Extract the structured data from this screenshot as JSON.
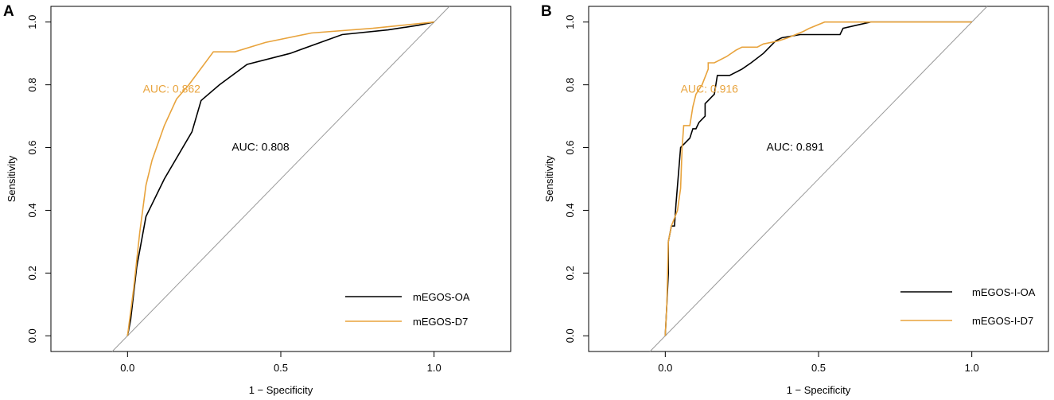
{
  "chart_data": [
    {
      "panel": "A",
      "type": "line",
      "title": "",
      "xlabel": "1 − Specificity",
      "ylabel": "Sensitivity",
      "xlim": [
        -0.25,
        1.25
      ],
      "ylim": [
        -0.05,
        1.05
      ],
      "x_ticks": [
        0.0,
        0.5,
        1.0
      ],
      "x_tick_labels": [
        "0.0",
        "0.5",
        "1.0"
      ],
      "y_ticks": [
        0.0,
        0.2,
        0.4,
        0.6,
        0.8,
        1.0
      ],
      "y_tick_labels": [
        "0.0",
        "0.2",
        "0.4",
        "0.6",
        "0.8",
        "1.0"
      ],
      "diagonal": true,
      "legend_position": "bottom-right",
      "series": [
        {
          "name": "mEGOS-OA",
          "color": "#000000",
          "auc_label": "AUC: 0.808",
          "auc_at": [
            0.34,
            0.59
          ],
          "points": [
            [
              0,
              0
            ],
            [
              0.01,
              0.05
            ],
            [
              0.03,
              0.22
            ],
            [
              0.06,
              0.38
            ],
            [
              0.12,
              0.5
            ],
            [
              0.21,
              0.65
            ],
            [
              0.24,
              0.75
            ],
            [
              0.3,
              0.8
            ],
            [
              0.39,
              0.865
            ],
            [
              0.53,
              0.9
            ],
            [
              0.7,
              0.96
            ],
            [
              0.85,
              0.975
            ],
            [
              0.95,
              0.99
            ],
            [
              1.0,
              1.0
            ]
          ]
        },
        {
          "name": "mEGOS-D7",
          "color": "#e8a33c",
          "auc_label": "AUC: 0.862",
          "auc_at": [
            0.05,
            0.775
          ],
          "points": [
            [
              0,
              0
            ],
            [
              0.02,
              0.15
            ],
            [
              0.04,
              0.33
            ],
            [
              0.06,
              0.48
            ],
            [
              0.08,
              0.56
            ],
            [
              0.12,
              0.67
            ],
            [
              0.16,
              0.755
            ],
            [
              0.2,
              0.8
            ],
            [
              0.28,
              0.905
            ],
            [
              0.35,
              0.905
            ],
            [
              0.45,
              0.935
            ],
            [
              0.6,
              0.965
            ],
            [
              0.8,
              0.98
            ],
            [
              1.0,
              1.0
            ]
          ]
        }
      ]
    },
    {
      "panel": "B",
      "type": "line",
      "title": "",
      "xlabel": "1 − Specificity",
      "ylabel": "Sensitivity",
      "xlim": [
        -0.25,
        1.25
      ],
      "ylim": [
        -0.05,
        1.05
      ],
      "x_ticks": [
        0.0,
        0.5,
        1.0
      ],
      "x_tick_labels": [
        "0.0",
        "0.5",
        "1.0"
      ],
      "y_ticks": [
        0.0,
        0.2,
        0.4,
        0.6,
        0.8,
        1.0
      ],
      "y_tick_labels": [
        "0.0",
        "0.2",
        "0.4",
        "0.6",
        "0.8",
        "1.0"
      ],
      "diagonal": true,
      "legend_position": "bottom-right",
      "series": [
        {
          "name": "mEGOS-I-OA",
          "color": "#000000",
          "auc_label": "AUC: 0.891",
          "auc_at": [
            0.33,
            0.59
          ],
          "points": [
            [
              0,
              0
            ],
            [
              0.005,
              0.1
            ],
            [
              0.01,
              0.2
            ],
            [
              0.01,
              0.3
            ],
            [
              0.02,
              0.35
            ],
            [
              0.03,
              0.35
            ],
            [
              0.035,
              0.42
            ],
            [
              0.05,
              0.6
            ],
            [
              0.06,
              0.61
            ],
            [
              0.08,
              0.63
            ],
            [
              0.09,
              0.66
            ],
            [
              0.1,
              0.66
            ],
            [
              0.11,
              0.68
            ],
            [
              0.13,
              0.7
            ],
            [
              0.13,
              0.74
            ],
            [
              0.14,
              0.75
            ],
            [
              0.15,
              0.76
            ],
            [
              0.16,
              0.77
            ],
            [
              0.17,
              0.83
            ],
            [
              0.21,
              0.83
            ],
            [
              0.25,
              0.85
            ],
            [
              0.28,
              0.87
            ],
            [
              0.32,
              0.9
            ],
            [
              0.36,
              0.94
            ],
            [
              0.38,
              0.95
            ],
            [
              0.44,
              0.96
            ],
            [
              0.57,
              0.96
            ],
            [
              0.58,
              0.98
            ],
            [
              0.67,
              1.0
            ],
            [
              1.0,
              1.0
            ]
          ]
        },
        {
          "name": "mEGOS-I-D7",
          "color": "#e8a33c",
          "auc_label": "AUC: 0.916",
          "auc_at": [
            0.05,
            0.775
          ],
          "points": [
            [
              0,
              0
            ],
            [
              0.005,
              0.1
            ],
            [
              0.01,
              0.3
            ],
            [
              0.02,
              0.35
            ],
            [
              0.04,
              0.4
            ],
            [
              0.05,
              0.47
            ],
            [
              0.055,
              0.6
            ],
            [
              0.06,
              0.67
            ],
            [
              0.08,
              0.67
            ],
            [
              0.09,
              0.73
            ],
            [
              0.1,
              0.77
            ],
            [
              0.12,
              0.8
            ],
            [
              0.14,
              0.85
            ],
            [
              0.14,
              0.87
            ],
            [
              0.16,
              0.87
            ],
            [
              0.2,
              0.89
            ],
            [
              0.23,
              0.91
            ],
            [
              0.25,
              0.92
            ],
            [
              0.3,
              0.92
            ],
            [
              0.32,
              0.93
            ],
            [
              0.37,
              0.94
            ],
            [
              0.4,
              0.95
            ],
            [
              0.45,
              0.97
            ],
            [
              0.47,
              0.98
            ],
            [
              0.52,
              1.0
            ],
            [
              1.0,
              1.0
            ]
          ]
        }
      ]
    }
  ]
}
